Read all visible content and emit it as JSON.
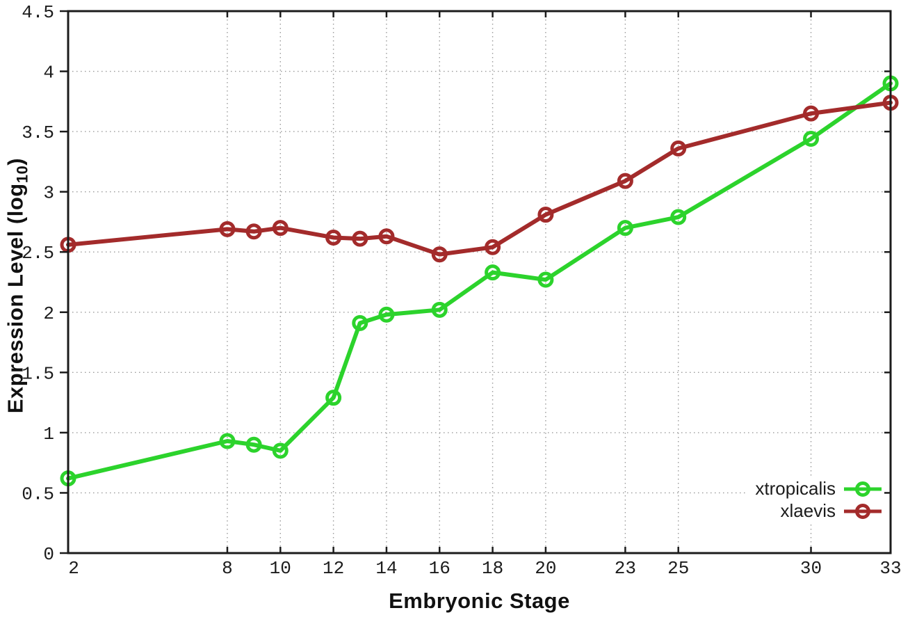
{
  "page": {
    "background": "#ffffff"
  },
  "chart_data": {
    "type": "line",
    "title": "",
    "xlabel": "Embryonic Stage",
    "ylabel": "Expression Level (log10)",
    "ylabel_parts": {
      "prefix": "Expression Level (log",
      "sub": "10",
      "suffix": ")"
    },
    "x": [
      2,
      8,
      9,
      10,
      12,
      13,
      14,
      16,
      18,
      20,
      23,
      25,
      30,
      33
    ],
    "series": [
      {
        "name": "xtropicalis",
        "color": "#2cd32c",
        "values": [
          0.62,
          0.93,
          0.9,
          0.85,
          1.29,
          1.91,
          1.98,
          2.02,
          2.33,
          2.27,
          2.7,
          2.79,
          3.44,
          3.9
        ]
      },
      {
        "name": "xlaevis",
        "color": "#a32b2b",
        "values": [
          2.56,
          2.69,
          2.67,
          2.7,
          2.62,
          2.61,
          2.63,
          2.48,
          2.54,
          2.81,
          3.09,
          3.36,
          3.65,
          3.74
        ]
      }
    ],
    "xlim": [
      2,
      33
    ],
    "ylim": [
      0,
      4.5
    ],
    "x_ticks": [
      2,
      8,
      10,
      12,
      14,
      16,
      18,
      20,
      23,
      25,
      30,
      33
    ],
    "x_tick_labels": [
      "2",
      "8",
      "10",
      "12",
      "14",
      "16",
      "18",
      "20",
      "23",
      "25",
      "30",
      "33"
    ],
    "y_ticks": [
      0,
      0.5,
      1,
      1.5,
      2,
      2.5,
      3,
      3.5,
      4,
      4.5
    ],
    "y_tick_labels": [
      "0",
      "0.5",
      "1",
      "1.5",
      "2",
      "2.5",
      "3",
      "3.5",
      "4",
      "4.5"
    ],
    "grid": true,
    "grid_style": "dotted",
    "legend_position": "bottom-right",
    "colors": {
      "axis": "#1c1c1c",
      "grid": "#9a9a9a",
      "text": "#1c1c1c",
      "background": "#ffffff"
    }
  }
}
